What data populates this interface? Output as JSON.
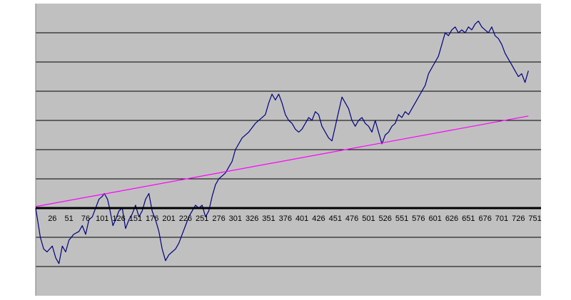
{
  "chart_data": {
    "type": "line",
    "title": "",
    "xlabel": "",
    "ylabel": "",
    "grid": true,
    "legend": "none",
    "xlim": [
      1,
      760
    ],
    "ylim": [
      -3,
      7
    ],
    "zero_line": 0,
    "x_tick_values": [
      26,
      51,
      76,
      101,
      126,
      151,
      176,
      201,
      226,
      251,
      276,
      301,
      326,
      351,
      376,
      401,
      426,
      451,
      476,
      501,
      526,
      551,
      576,
      601,
      626,
      651,
      676,
      701,
      726,
      751
    ],
    "x_tick_labels": [
      "26",
      "51",
      "76",
      "101",
      "126",
      "151",
      "176",
      "201",
      "226",
      "251",
      "276",
      "301",
      "326",
      "351",
      "376",
      "401",
      "426",
      "451",
      "476",
      "501",
      "526",
      "551",
      "576",
      "601",
      "626",
      "651",
      "676",
      "701",
      "726",
      "751"
    ],
    "y_gridlines": [
      -2,
      -1,
      0,
      1,
      2,
      3,
      4,
      5,
      6
    ],
    "colors": {
      "plot_background": "#c0c0c0",
      "gridline": "#000000",
      "zero_axis": "#000000",
      "series_1": "#000080",
      "series_2": "#ff00ff"
    },
    "series": [
      {
        "color": "#000080",
        "x": [
          1,
          8,
          13,
          18,
          26,
          31,
          36,
          41,
          46,
          51,
          58,
          66,
          71,
          76,
          81,
          86,
          91,
          96,
          101,
          104,
          109,
          112,
          117,
          121,
          126,
          131,
          136,
          141,
          146,
          151,
          156,
          161,
          166,
          171,
          176,
          181,
          186,
          191,
          196,
          201,
          206,
          211,
          216,
          221,
          226,
          231,
          236,
          241,
          246,
          251,
          256,
          261,
          266,
          271,
          276,
          281,
          286,
          291,
          296,
          301,
          311,
          321,
          331,
          341,
          346,
          351,
          356,
          361,
          366,
          371,
          376,
          381,
          386,
          391,
          396,
          401,
          406,
          411,
          416,
          421,
          426,
          431,
          436,
          441,
          446,
          451,
          456,
          461,
          466,
          471,
          476,
          481,
          486,
          491,
          496,
          501,
          506,
          511,
          516,
          521,
          526,
          531,
          536,
          541,
          546,
          551,
          556,
          561,
          566,
          571,
          576,
          581,
          586,
          591,
          596,
          601,
          606,
          611,
          616,
          621,
          626,
          631,
          636,
          641,
          646,
          651,
          656,
          661,
          666,
          671,
          676,
          681,
          686,
          691,
          696,
          701,
          706,
          711,
          716,
          721,
          726,
          731,
          736,
          741
        ],
        "y": [
          0.0,
          -1.0,
          -1.4,
          -1.5,
          -1.3,
          -1.7,
          -1.9,
          -1.3,
          -1.5,
          -1.1,
          -0.9,
          -0.8,
          -0.6,
          -0.9,
          -0.4,
          -0.3,
          0.0,
          0.3,
          0.4,
          0.5,
          0.3,
          0.0,
          -0.6,
          -0.4,
          -0.1,
          0.0,
          -0.7,
          -0.4,
          -0.2,
          0.1,
          -0.3,
          -0.1,
          0.3,
          0.5,
          -0.1,
          -0.4,
          -0.8,
          -1.4,
          -1.8,
          -1.6,
          -1.5,
          -1.4,
          -1.2,
          -0.9,
          -0.6,
          -0.3,
          -0.1,
          0.1,
          0.0,
          0.1,
          -0.3,
          -0.1,
          0.4,
          0.8,
          1.0,
          1.1,
          1.2,
          1.4,
          1.6,
          2.0,
          2.4,
          2.6,
          2.9,
          3.1,
          3.2,
          3.6,
          3.9,
          3.7,
          3.9,
          3.6,
          3.2,
          3.0,
          2.9,
          2.7,
          2.6,
          2.7,
          2.9,
          3.1,
          3.0,
          3.3,
          3.2,
          2.8,
          2.6,
          2.4,
          2.3,
          2.8,
          3.3,
          3.8,
          3.6,
          3.4,
          3.0,
          2.8,
          3.0,
          3.1,
          2.9,
          2.8,
          2.6,
          3.0,
          2.6,
          2.2,
          2.5,
          2.6,
          2.8,
          2.9,
          3.2,
          3.1,
          3.3,
          3.2,
          3.4,
          3.6,
          3.8,
          4.0,
          4.2,
          4.6,
          4.8,
          5.0,
          5.2,
          5.6,
          6.0,
          5.9,
          6.1,
          6.2,
          6.0,
          6.1,
          6.0,
          6.2,
          6.1,
          6.3,
          6.4,
          6.2,
          6.1,
          6.0,
          6.2,
          5.9,
          5.8,
          5.6,
          5.3,
          5.1,
          4.9,
          4.7,
          4.5,
          4.6,
          4.3,
          4.7
        ]
      },
      {
        "color": "#ff00ff",
        "x": [
          1,
          741
        ],
        "y": [
          0.05,
          3.15
        ]
      }
    ]
  }
}
